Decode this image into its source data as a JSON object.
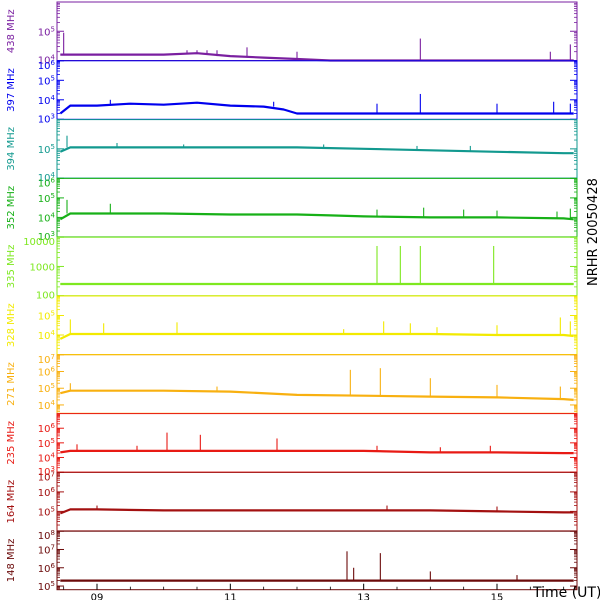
{
  "chart_data": {
    "type": "line",
    "side_label": "NRHR 20050428",
    "xlabel": "Time (UT)",
    "x_tick_labels": [
      "09",
      "11",
      "13",
      "15"
    ],
    "x_tick_values": [
      9,
      11,
      13,
      15
    ],
    "x_range": [
      8.4,
      16.2
    ],
    "grid": false,
    "legend": "none",
    "panels": [
      {
        "freq_label": "438 MHz",
        "color": "#7a1fa0",
        "log": true,
        "ylim_exp": [
          4,
          6
        ],
        "tick_labels": [
          "10^5",
          "10^4"
        ],
        "tick_exps": [
          5,
          4
        ],
        "x": [
          8.45,
          9.0,
          10.0,
          10.5,
          11.0,
          11.5,
          12.0,
          12.5,
          13.0,
          14.0,
          15.0,
          16.0,
          16.15
        ],
        "y_exp": [
          4.2,
          4.2,
          4.2,
          4.25,
          4.15,
          4.1,
          4.05,
          4.0,
          4.0,
          4.0,
          4.0,
          4.0,
          4.0
        ],
        "spikes": [
          [
            8.5,
            4.95
          ],
          [
            10.35,
            4.35
          ],
          [
            10.5,
            4.35
          ],
          [
            10.65,
            4.35
          ],
          [
            10.8,
            4.35
          ],
          [
            11.25,
            4.45
          ],
          [
            12.0,
            4.3
          ],
          [
            13.85,
            4.75
          ],
          [
            15.8,
            4.3
          ],
          [
            16.1,
            4.55
          ]
        ]
      },
      {
        "freq_label": "397 MHz",
        "color": "#0000ee",
        "log": true,
        "ylim_exp": [
          3,
          6
        ],
        "tick_labels": [
          "10^6",
          "10^5",
          "10^4",
          "10^3"
        ],
        "tick_exps": [
          6,
          5,
          4,
          3
        ],
        "x": [
          8.45,
          8.6,
          9.0,
          9.5,
          10.0,
          10.5,
          11.0,
          11.5,
          11.8,
          12.0,
          13.0,
          14.0,
          15.0,
          16.15
        ],
        "y_exp": [
          3.3,
          3.7,
          3.7,
          3.8,
          3.75,
          3.85,
          3.7,
          3.65,
          3.5,
          3.3,
          3.3,
          3.3,
          3.3,
          3.3
        ],
        "spikes": [
          [
            9.2,
            4.0
          ],
          [
            11.65,
            3.9
          ],
          [
            13.2,
            3.8
          ],
          [
            13.85,
            4.3
          ],
          [
            15.0,
            3.8
          ],
          [
            15.85,
            3.9
          ],
          [
            16.1,
            3.8
          ]
        ]
      },
      {
        "freq_label": "394 MHz",
        "color": "#12998f",
        "log": true,
        "ylim_exp": [
          4,
          6
        ],
        "tick_labels": [
          "10^5",
          "10^4"
        ],
        "tick_exps": [
          5,
          4
        ],
        "x": [
          8.45,
          8.6,
          9.0,
          10.0,
          11.0,
          12.0,
          13.0,
          14.0,
          15.0,
          16.0,
          16.15
        ],
        "y_exp": [
          4.9,
          5.05,
          5.05,
          5.05,
          5.05,
          5.05,
          5.0,
          4.95,
          4.9,
          4.85,
          4.85
        ],
        "spikes": [
          [
            8.55,
            5.45
          ],
          [
            9.3,
            5.2
          ],
          [
            10.3,
            5.15
          ],
          [
            12.4,
            5.15
          ],
          [
            13.8,
            5.1
          ],
          [
            14.6,
            5.1
          ]
        ]
      },
      {
        "freq_label": "352 MHz",
        "color": "#17b017",
        "log": true,
        "ylim_exp": [
          3,
          6
        ],
        "tick_labels": [
          "10^6",
          "10^5",
          "10^4",
          "10^3"
        ],
        "tick_exps": [
          6,
          5,
          4,
          3
        ],
        "x": [
          8.45,
          8.6,
          9.0,
          10.0,
          11.0,
          12.0,
          12.5,
          13.0,
          14.0,
          15.0,
          16.0,
          16.15
        ],
        "y_exp": [
          3.9,
          4.2,
          4.2,
          4.2,
          4.15,
          4.15,
          4.1,
          4.05,
          4.0,
          4.0,
          3.95,
          3.9
        ],
        "spikes": [
          [
            8.55,
            4.9
          ],
          [
            9.2,
            4.7
          ],
          [
            13.2,
            4.4
          ],
          [
            13.9,
            4.5
          ],
          [
            14.5,
            4.4
          ],
          [
            15.0,
            4.35
          ],
          [
            15.9,
            4.3
          ],
          [
            16.1,
            4.45
          ]
        ]
      },
      {
        "freq_label": "335 MHz",
        "color": "#7ee820",
        "log": true,
        "ylim_exp": [
          2,
          4
        ],
        "tick_labels": [
          "10000",
          "1000",
          "100"
        ],
        "tick_exps": [
          4,
          3,
          2
        ],
        "x": [
          8.45,
          16.15
        ],
        "y_exp": [
          2.4,
          2.4
        ],
        "spikes": [
          [
            13.2,
            3.7
          ],
          [
            13.55,
            3.7
          ],
          [
            13.85,
            3.7
          ],
          [
            14.95,
            3.7
          ]
        ]
      },
      {
        "freq_label": "328 MHz",
        "color": "#f2ea00",
        "log": true,
        "ylim_exp": [
          3,
          6
        ],
        "tick_labels": [
          "10^5",
          "10^4"
        ],
        "tick_exps": [
          5,
          4
        ],
        "x": [
          8.45,
          8.6,
          9.0,
          10.0,
          11.0,
          12.0,
          13.0,
          14.0,
          15.0,
          16.0,
          16.15
        ],
        "y_exp": [
          3.8,
          4.05,
          4.05,
          4.05,
          4.05,
          4.05,
          4.05,
          4.05,
          4.0,
          4.0,
          3.95
        ],
        "spikes": [
          [
            8.6,
            4.8
          ],
          [
            9.1,
            4.6
          ],
          [
            10.2,
            4.65
          ],
          [
            12.7,
            4.3
          ],
          [
            13.3,
            4.7
          ],
          [
            13.7,
            4.6
          ],
          [
            14.1,
            4.4
          ],
          [
            15.0,
            4.5
          ],
          [
            15.95,
            4.9
          ],
          [
            16.1,
            4.7
          ]
        ]
      },
      {
        "freq_label": "271 MHz",
        "color": "#f8b010",
        "log": true,
        "ylim_exp": [
          3.5,
          7
        ],
        "tick_labels": [
          "10^7",
          "10^6",
          "10^5",
          "10^4"
        ],
        "tick_exps": [
          7,
          6,
          5,
          4
        ],
        "x": [
          8.45,
          8.6,
          9.0,
          10.0,
          11.0,
          12.0,
          13.0,
          14.0,
          15.0,
          16.0,
          16.15
        ],
        "y_exp": [
          4.7,
          4.85,
          4.85,
          4.85,
          4.8,
          4.6,
          4.55,
          4.5,
          4.45,
          4.35,
          4.3
        ],
        "spikes": [
          [
            8.6,
            5.3
          ],
          [
            10.8,
            5.1
          ],
          [
            12.8,
            6.1
          ],
          [
            13.25,
            6.2
          ],
          [
            14.0,
            5.6
          ],
          [
            15.0,
            5.2
          ],
          [
            15.95,
            5.1
          ]
        ]
      },
      {
        "freq_label": "235 MHz",
        "color": "#e81a14",
        "log": true,
        "ylim_exp": [
          3,
          7
        ],
        "tick_labels": [
          "10^6",
          "10^5",
          "10^4",
          "10^3"
        ],
        "tick_exps": [
          6,
          5,
          4,
          3
        ],
        "x": [
          8.45,
          8.6,
          9.0,
          10.0,
          11.0,
          12.0,
          13.0,
          13.5,
          14.0,
          15.0,
          16.0,
          16.15
        ],
        "y_exp": [
          4.35,
          4.45,
          4.45,
          4.45,
          4.45,
          4.45,
          4.45,
          4.4,
          4.35,
          4.35,
          4.3,
          4.3
        ],
        "spikes": [
          [
            8.7,
            4.9
          ],
          [
            9.6,
            4.8
          ],
          [
            10.05,
            5.7
          ],
          [
            10.55,
            5.55
          ],
          [
            11.7,
            5.3
          ],
          [
            13.2,
            4.8
          ],
          [
            14.15,
            4.7
          ],
          [
            14.9,
            4.8
          ]
        ]
      },
      {
        "freq_label": "164 MHz",
        "color": "#a31010",
        "log": true,
        "ylim_exp": [
          4,
          7
        ],
        "tick_labels": [
          "10^7",
          "10^6",
          "10^5"
        ],
        "tick_exps": [
          7,
          6,
          5
        ],
        "x": [
          8.45,
          8.6,
          9.0,
          10.0,
          11.0,
          12.0,
          13.0,
          14.0,
          15.0,
          16.0,
          16.15
        ],
        "y_exp": [
          4.9,
          5.1,
          5.1,
          5.05,
          5.05,
          5.05,
          5.05,
          5.05,
          5.0,
          4.95,
          4.95
        ],
        "spikes": [
          [
            9.0,
            5.3
          ],
          [
            13.35,
            5.3
          ],
          [
            15.0,
            5.25
          ]
        ]
      },
      {
        "freq_label": "148 MHz",
        "color": "#6b0a0a",
        "log": true,
        "ylim_exp": [
          4.8,
          8
        ],
        "tick_labels": [
          "10^8",
          "10^7",
          "10^6",
          "10^5"
        ],
        "tick_exps": [
          8,
          7,
          6,
          5
        ],
        "x": [
          8.45,
          16.15
        ],
        "y_exp": [
          5.3,
          5.3
        ],
        "spikes": [
          [
            12.75,
            6.9
          ],
          [
            12.85,
            6.0
          ],
          [
            13.25,
            6.8
          ],
          [
            14.0,
            5.8
          ],
          [
            15.3,
            5.6
          ]
        ]
      }
    ]
  }
}
